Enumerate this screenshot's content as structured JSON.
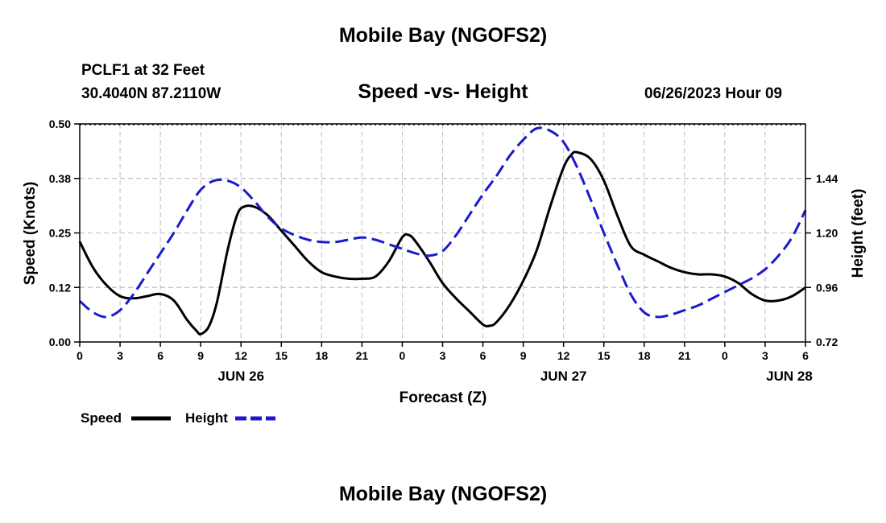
{
  "header": {
    "title": "Mobile Bay (NGOFS2)",
    "station": "PCLF1 at 32 Feet",
    "coords": "30.4040N  87.2110W",
    "subtitle": "Speed -vs- Height",
    "timestamp": "06/26/2023 Hour 09"
  },
  "footer": {
    "title": "Mobile Bay (NGOFS2)"
  },
  "chart_data": {
    "type": "line",
    "title": "Speed -vs- Height",
    "xlabel": "Forecast (Z)",
    "ylabel": "Speed (Knots)",
    "ylabel_right": "Height (feet)",
    "x_unit": "hours from 2023-06-26 00Z",
    "xlim": [
      0,
      54
    ],
    "ylim": [
      0,
      0.5
    ],
    "ylim_right": [
      0.72,
      1.68
    ],
    "x_ticks": [
      {
        "x": 0,
        "label": "0"
      },
      {
        "x": 3,
        "label": "3"
      },
      {
        "x": 6,
        "label": "6"
      },
      {
        "x": 9,
        "label": "9"
      },
      {
        "x": 12,
        "label": "12"
      },
      {
        "x": 15,
        "label": "15"
      },
      {
        "x": 18,
        "label": "18"
      },
      {
        "x": 21,
        "label": "21"
      },
      {
        "x": 24,
        "label": "0"
      },
      {
        "x": 27,
        "label": "3"
      },
      {
        "x": 30,
        "label": "6"
      },
      {
        "x": 33,
        "label": "9"
      },
      {
        "x": 36,
        "label": "12"
      },
      {
        "x": 39,
        "label": "15"
      },
      {
        "x": 42,
        "label": "18"
      },
      {
        "x": 45,
        "label": "21"
      },
      {
        "x": 48,
        "label": "0"
      },
      {
        "x": 51,
        "label": "3"
      },
      {
        "x": 54,
        "label": "6"
      }
    ],
    "day_labels": [
      {
        "x": 12,
        "label": "JUN 26"
      },
      {
        "x": 36,
        "label": "JUN 27"
      },
      {
        "x": 52.8,
        "label": "JUN 28"
      }
    ],
    "y_ticks": [
      {
        "y": 0.0,
        "label": "0.00"
      },
      {
        "y": 0.125,
        "label": "0.12"
      },
      {
        "y": 0.25,
        "label": "0.25"
      },
      {
        "y": 0.375,
        "label": "0.38"
      },
      {
        "y": 0.5,
        "label": "0.50"
      }
    ],
    "y_ticks_right": [
      {
        "y": 0.72,
        "label": "0.72"
      },
      {
        "y": 0.96,
        "label": "0.96"
      },
      {
        "y": 1.2,
        "label": "1.20"
      },
      {
        "y": 1.44,
        "label": "1.44"
      }
    ],
    "grid": true,
    "legend_position": "bottom-left",
    "series": [
      {
        "name": "Speed",
        "axis": "left",
        "color": "#000000",
        "dash": "solid",
        "x": [
          0,
          1,
          2,
          3,
          4,
          5,
          6,
          7,
          8,
          8.7,
          9,
          9.6,
          10.2,
          11,
          11.7,
          12.2,
          13,
          14,
          15,
          16,
          17,
          18,
          19,
          20,
          21,
          22,
          23,
          24,
          24.5,
          25,
          26,
          27,
          28,
          29,
          30,
          30.5,
          31,
          32,
          33,
          34,
          35,
          36,
          36.6,
          37,
          38,
          39,
          40,
          41,
          42,
          43,
          44,
          45,
          46,
          47,
          48,
          49,
          50,
          51,
          52,
          53,
          54
        ],
        "y": [
          0.23,
          0.17,
          0.13,
          0.105,
          0.1,
          0.105,
          0.11,
          0.095,
          0.05,
          0.025,
          0.018,
          0.035,
          0.09,
          0.21,
          0.29,
          0.31,
          0.31,
          0.29,
          0.255,
          0.22,
          0.185,
          0.16,
          0.15,
          0.145,
          0.145,
          0.15,
          0.185,
          0.24,
          0.245,
          0.23,
          0.185,
          0.135,
          0.1,
          0.07,
          0.04,
          0.037,
          0.045,
          0.085,
          0.14,
          0.21,
          0.31,
          0.4,
          0.43,
          0.435,
          0.42,
          0.37,
          0.29,
          0.22,
          0.2,
          0.185,
          0.17,
          0.16,
          0.155,
          0.155,
          0.15,
          0.135,
          0.11,
          0.095,
          0.095,
          0.105,
          0.125
        ]
      },
      {
        "name": "Height",
        "axis": "right",
        "color": "#1a1acc",
        "dash": "dashed",
        "x": [
          0,
          1,
          2,
          3,
          4,
          5,
          6,
          7,
          8,
          9,
          10,
          11,
          12,
          13,
          14,
          15,
          16,
          17,
          18,
          19,
          20,
          21,
          22,
          23,
          24,
          25,
          26,
          27,
          28,
          29,
          30,
          31,
          32,
          33,
          34,
          35,
          36,
          37,
          38,
          39,
          40,
          41,
          42,
          43,
          44,
          45,
          46,
          47,
          48,
          49,
          50,
          51,
          52,
          53,
          54
        ],
        "y": [
          0.9,
          0.85,
          0.83,
          0.86,
          0.93,
          1.02,
          1.11,
          1.2,
          1.3,
          1.39,
          1.43,
          1.43,
          1.4,
          1.34,
          1.27,
          1.22,
          1.19,
          1.17,
          1.16,
          1.16,
          1.17,
          1.18,
          1.17,
          1.15,
          1.13,
          1.11,
          1.1,
          1.12,
          1.19,
          1.28,
          1.37,
          1.45,
          1.54,
          1.61,
          1.66,
          1.65,
          1.6,
          1.49,
          1.35,
          1.2,
          1.06,
          0.93,
          0.85,
          0.83,
          0.84,
          0.86,
          0.88,
          0.91,
          0.94,
          0.97,
          1.0,
          1.04,
          1.1,
          1.18,
          1.3
        ]
      }
    ]
  }
}
